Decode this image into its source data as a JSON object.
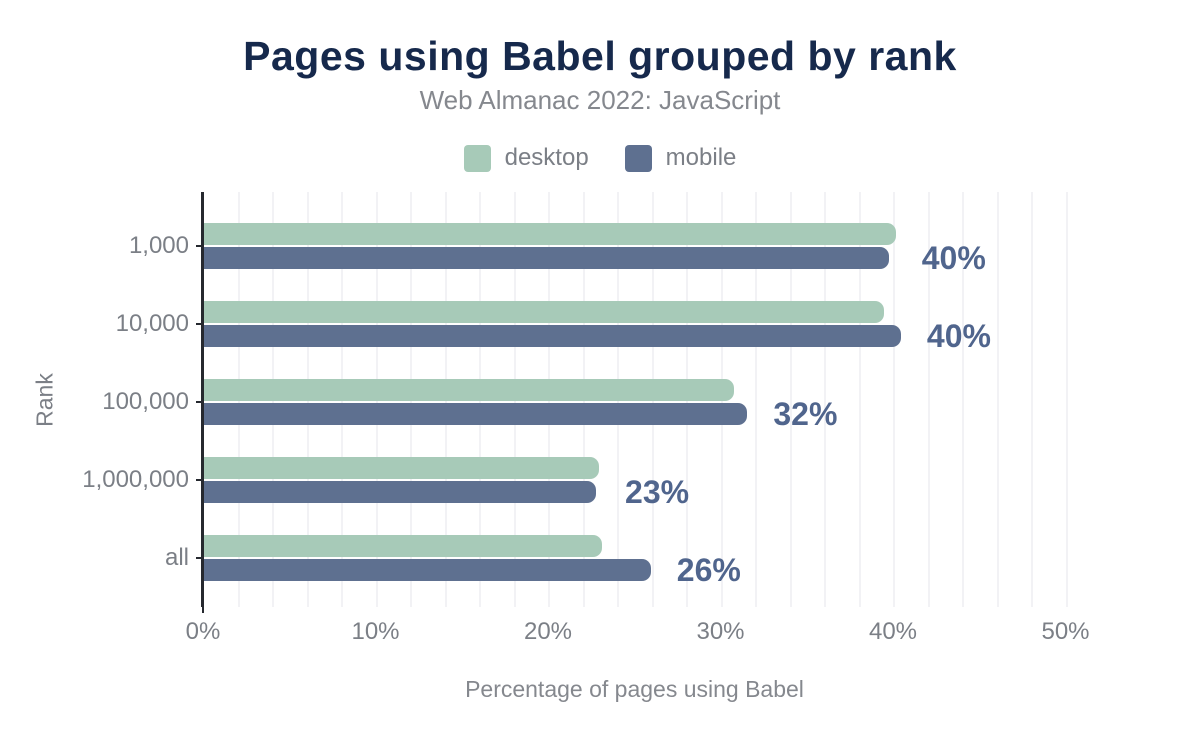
{
  "chart_data": {
    "type": "bar",
    "orientation": "horizontal",
    "title": "Pages using Babel grouped by rank",
    "subtitle": "Web Almanac 2022: JavaScript",
    "categories": [
      "1,000",
      "10,000",
      "100,000",
      "1,000,000",
      "all"
    ],
    "series": [
      {
        "name": "desktop",
        "color": "#a7cab8",
        "values": [
          40.1,
          39.4,
          30.7,
          22.9,
          23.1
        ]
      },
      {
        "name": "mobile",
        "color": "#5e7090",
        "values": [
          39.7,
          40.4,
          31.5,
          22.7,
          25.9
        ]
      }
    ],
    "data_labels": [
      "40%",
      "40%",
      "32%",
      "23%",
      "26%"
    ],
    "x_ticks": [
      "0%",
      "10%",
      "20%",
      "30%",
      "40%",
      "50%"
    ],
    "xlim": [
      0,
      50
    ],
    "grid_step_pct": 2,
    "xlabel": "Percentage of pages using Babel",
    "ylabel": "Rank",
    "legend_position": "top",
    "colors": {
      "title": "#16294c",
      "subtitle": "#85888e",
      "axis_text": "#7b7f86",
      "value_label": "#50658d",
      "axis_line": "#26292f",
      "gridline": "#f2f2f5"
    }
  }
}
